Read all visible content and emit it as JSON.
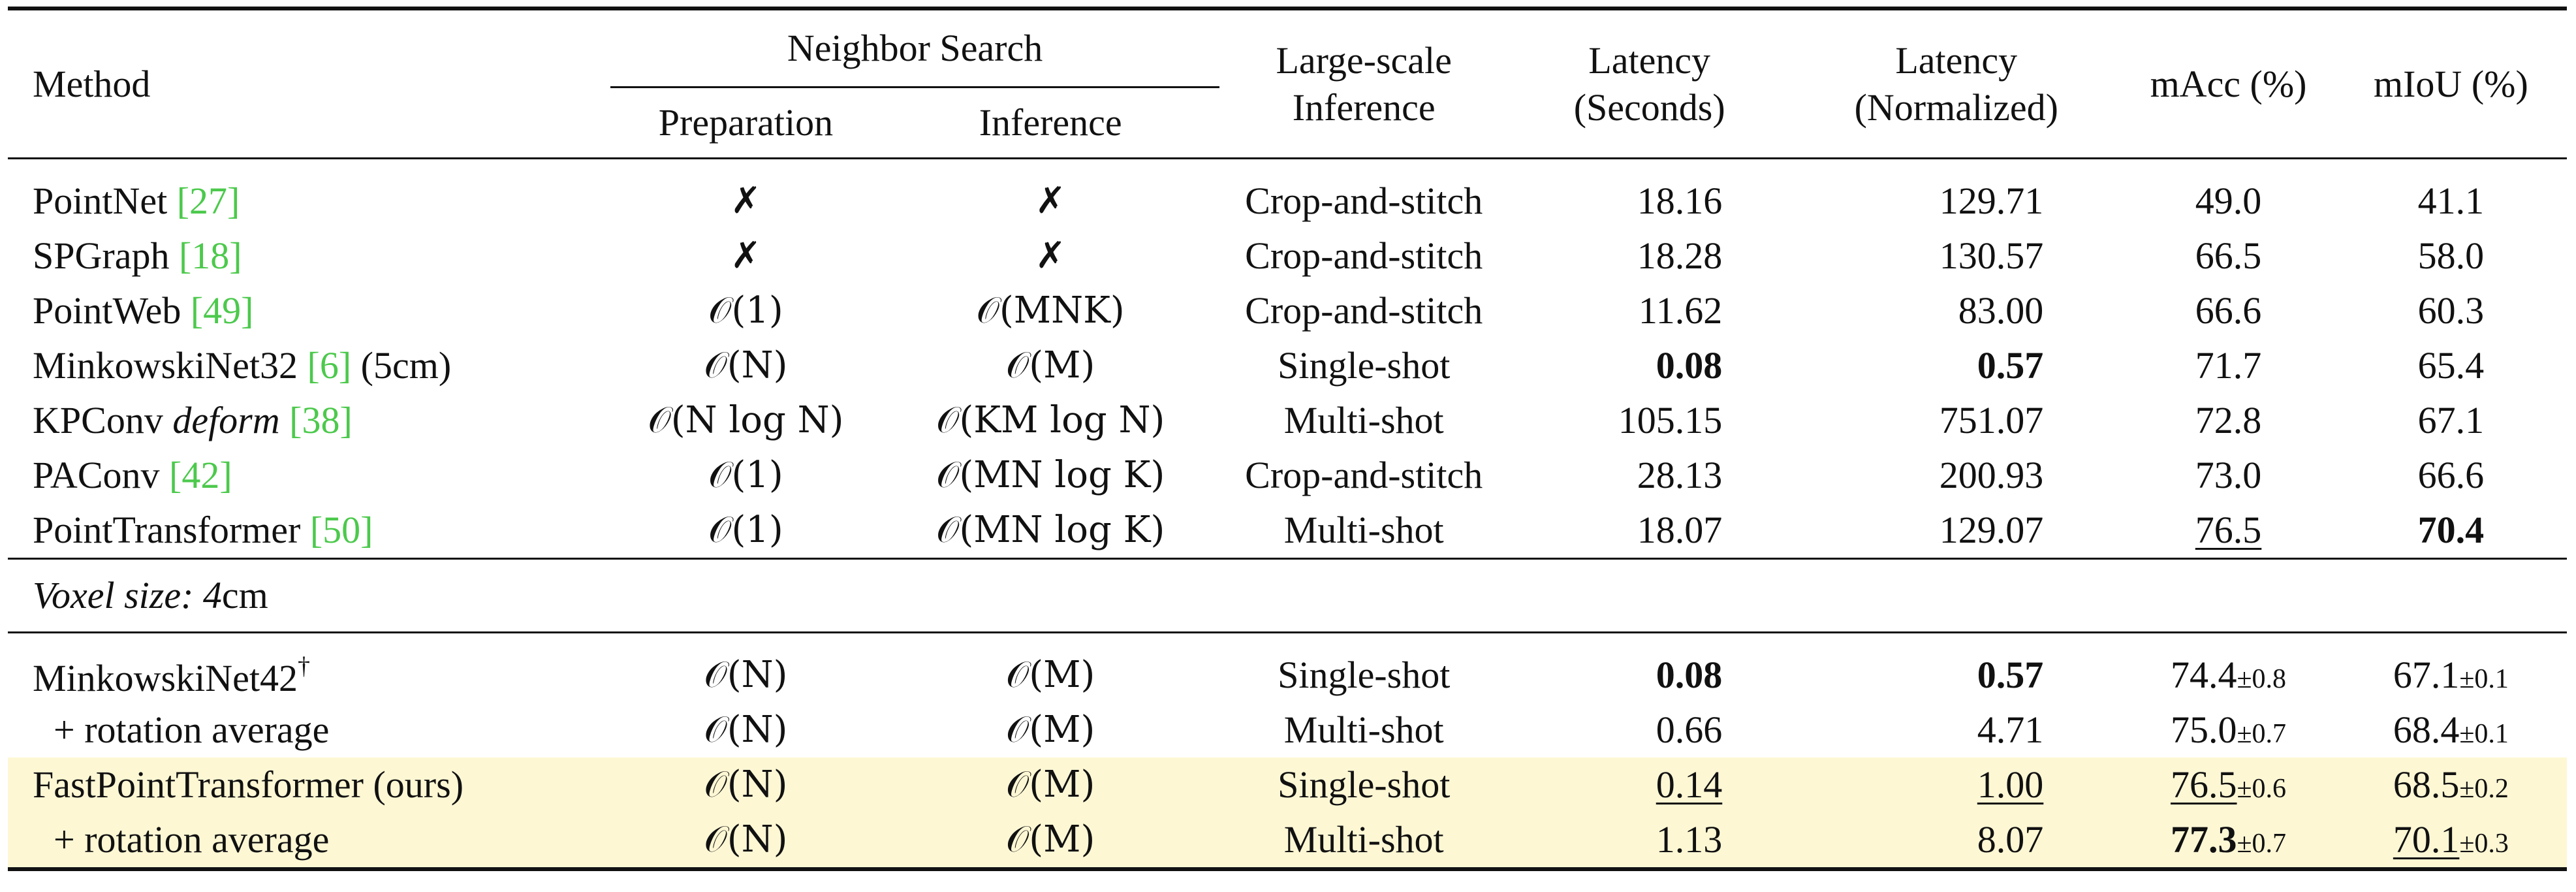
{
  "header": {
    "method": "Method",
    "neighbor_search": "Neighbor Search",
    "preparation": "Preparation",
    "inference": "Inference",
    "large_scale_1": "Large-scale",
    "large_scale_2": "Inference",
    "latency_s_1": "Latency",
    "latency_s_2": "(Seconds)",
    "latency_n_1": "Latency",
    "latency_n_2": "(Normalized)",
    "macc": "mAcc (%)",
    "miou": "mIoU (%)"
  },
  "rows_top": [
    {
      "name": "PointNet ",
      "cite": "[27]",
      "after": "",
      "prep": "✗",
      "inf": "✗",
      "lsi": "Crop-and-stitch",
      "lat": "18.16",
      "latn": "129.71",
      "macc": "49.0",
      "miou": "41.1"
    },
    {
      "name": "SPGraph ",
      "cite": "[18]",
      "after": "",
      "prep": "✗",
      "inf": "✗",
      "lsi": "Crop-and-stitch",
      "lat": "18.28",
      "latn": "130.57",
      "macc": "66.5",
      "miou": "58.0"
    },
    {
      "name": "PointWeb ",
      "cite": "[49]",
      "after": "",
      "prep": "𝒪(1)",
      "inf": "𝒪(MNK)",
      "lsi": "Crop-and-stitch",
      "lat": "11.62",
      "latn": "83.00",
      "macc": "66.6",
      "miou": "60.3"
    },
    {
      "name": "MinkowskiNet32 ",
      "cite": "[6]",
      "after": " (5cm)",
      "prep": "𝒪(N)",
      "inf": "𝒪(M)",
      "lsi": "Single-shot",
      "lat": "0.08",
      "latn": "0.57",
      "macc": "71.7",
      "miou": "65.4"
    },
    {
      "name": "KPConv ",
      "name_ital": "deform",
      "cite": "[38]",
      "after": "",
      "prep": "𝒪(N log N)",
      "inf": "𝒪(KM log N)",
      "lsi": "Multi-shot",
      "lat": "105.15",
      "latn": "751.07",
      "macc": "72.8",
      "miou": "67.1"
    },
    {
      "name": "PAConv ",
      "cite": "[42]",
      "after": "",
      "prep": "𝒪(1)",
      "inf": "𝒪(MN log K)",
      "lsi": "Crop-and-stitch",
      "lat": "28.13",
      "latn": "200.93",
      "macc": "73.0",
      "miou": "66.6"
    },
    {
      "name": "PointTransformer ",
      "cite": "[50]",
      "after": "",
      "prep": "𝒪(1)",
      "inf": "𝒪(MN log K)",
      "lsi": "Multi-shot",
      "lat": "18.07",
      "latn": "129.07",
      "macc": "76.5",
      "miou": "70.4"
    }
  ],
  "section": {
    "label_ital": "Voxel size: 4",
    "label_unit": "cm"
  },
  "rows_bottom": [
    {
      "name": "MinkowskiNet42",
      "dagger": "†",
      "prep": "𝒪(N)",
      "inf": "𝒪(M)",
      "lsi": "Single-shot",
      "lat": "0.08",
      "latn": "0.57",
      "macc": "74.4",
      "macc_std": "±0.8",
      "miou": "67.1",
      "miou_std": "±0.1"
    },
    {
      "name": "+ rotation average",
      "prep": "𝒪(N)",
      "inf": "𝒪(M)",
      "lsi": "Multi-shot",
      "lat": "0.66",
      "latn": "4.71",
      "macc": "75.0",
      "macc_std": "±0.7",
      "miou": "68.4",
      "miou_std": "±0.1"
    },
    {
      "name": "FastPointTransformer (ours)",
      "prep": "𝒪(N)",
      "inf": "𝒪(M)",
      "lsi": "Single-shot",
      "lat": "0.14",
      "latn": "1.00",
      "macc": "76.5",
      "macc_std": "±0.6",
      "miou": "68.5",
      "miou_std": "±0.2"
    },
    {
      "name": "+ rotation average",
      "prep": "𝒪(N)",
      "inf": "𝒪(M)",
      "lsi": "Multi-shot",
      "lat": "1.13",
      "latn": "8.07",
      "macc": "77.3",
      "macc_std": "±0.7",
      "miou": "70.1",
      "miou_std": "±0.3"
    }
  ],
  "colors": {
    "citation": "#4cc94c",
    "highlight": "#fdf7d4"
  }
}
